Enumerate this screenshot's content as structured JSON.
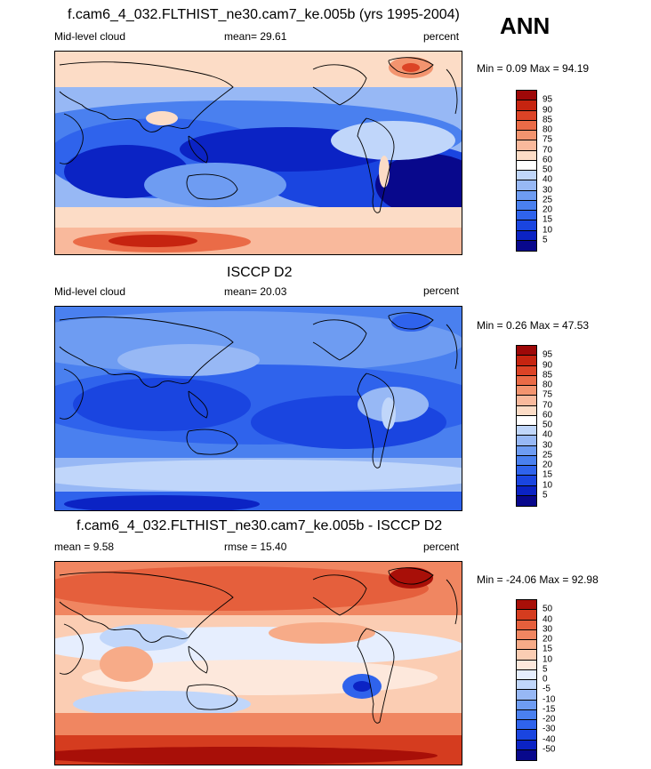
{
  "season": "ANN",
  "colors": {
    "model_obs_palette": [
      "#08088c",
      "#0b23c4",
      "#1a45e0",
      "#2f63ec",
      "#4a80ef",
      "#6e9cf2",
      "#97b8f5",
      "#c0d6fa",
      "#ffffff",
      "#fcdcc6",
      "#f9b99c",
      "#f3946f",
      "#ea6b47",
      "#dc4326",
      "#c62410",
      "#9e0808"
    ],
    "diff_palette": [
      "#08088c",
      "#0b23c4",
      "#1a45e0",
      "#2f63ec",
      "#4a80ef",
      "#6e9cf2",
      "#97b8f5",
      "#c0d6fa",
      "#e6eefe",
      "#fde8dc",
      "#fbcdb3",
      "#f7ab88",
      "#f08661",
      "#e55f3c",
      "#d53c1f",
      "#a80f08"
    ]
  },
  "panels": [
    {
      "title": "f.cam6_4_032.FLTHIST_ne30.cam7_ke.005b (yrs 1995-2004)",
      "left_label": "Mid-level cloud",
      "center_label": "mean=  29.61",
      "right_label": "percent",
      "minmax": "Min =   0.09 Max =  94.19",
      "colorbar_ticks": [
        "95",
        "90",
        "85",
        "80",
        "75",
        "70",
        "60",
        "50",
        "40",
        "30",
        "25",
        "20",
        "15",
        "10",
        "5"
      ]
    },
    {
      "title": "ISCCP D2",
      "left_label": "Mid-level cloud",
      "center_label": "mean=  20.03",
      "right_label": "percent",
      "minmax": "Min =   0.26 Max =  47.53",
      "colorbar_ticks": [
        "95",
        "90",
        "85",
        "80",
        "75",
        "70",
        "60",
        "50",
        "40",
        "30",
        "25",
        "20",
        "15",
        "10",
        "5"
      ]
    },
    {
      "title": "f.cam6_4_032.FLTHIST_ne30.cam7_ke.005b - ISCCP D2",
      "left_label": "mean =   9.58",
      "center_label": "rmse =  15.40",
      "right_label": "percent",
      "minmax": "Min = -24.06 Max =  92.98",
      "colorbar_ticks": [
        "50",
        "40",
        "30",
        "20",
        "15",
        "10",
        "5",
        "0",
        "-5",
        "-10",
        "-15",
        "-20",
        "-30",
        "-40",
        "-50"
      ]
    }
  ]
}
